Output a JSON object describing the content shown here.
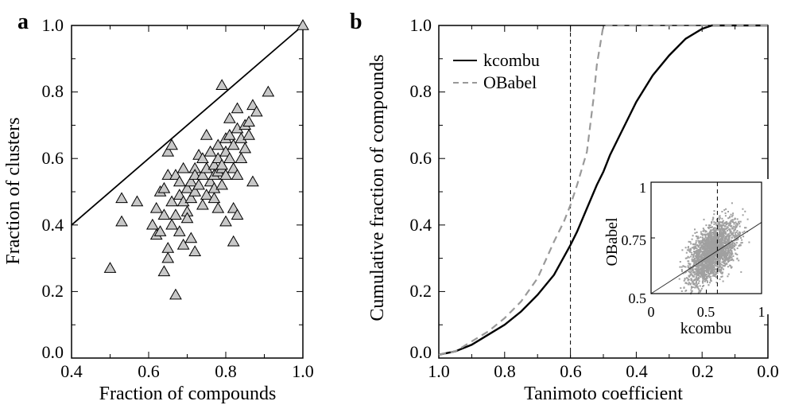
{
  "chart_data": [
    {
      "panel": "a",
      "type": "scatter",
      "xlabel": "Fraction of compounds",
      "ylabel": "Fraction of  clusters",
      "xlim": [
        0.4,
        1.0
      ],
      "ylim": [
        0.0,
        1.0
      ],
      "xticks": [
        "0.4",
        "0.6",
        "0.8",
        "1.0"
      ],
      "yticks": [
        "0.0",
        "0.2",
        "0.4",
        "0.6",
        "0.8",
        "1.0"
      ],
      "reference_line": [
        [
          0.4,
          0.4
        ],
        [
          1.0,
          1.0
        ]
      ],
      "marker": "triangle",
      "marker_color": "#c8c8c8",
      "points": [
        [
          0.5,
          0.27
        ],
        [
          0.53,
          0.48
        ],
        [
          0.53,
          0.41
        ],
        [
          0.57,
          0.47
        ],
        [
          0.61,
          0.4
        ],
        [
          0.62,
          0.37
        ],
        [
          0.62,
          0.45
        ],
        [
          0.63,
          0.38
        ],
        [
          0.63,
          0.5
        ],
        [
          0.64,
          0.51
        ],
        [
          0.64,
          0.26
        ],
        [
          0.64,
          0.43
        ],
        [
          0.65,
          0.3
        ],
        [
          0.65,
          0.33
        ],
        [
          0.65,
          0.55
        ],
        [
          0.65,
          0.62
        ],
        [
          0.66,
          0.64
        ],
        [
          0.66,
          0.4
        ],
        [
          0.66,
          0.47
        ],
        [
          0.67,
          0.43
        ],
        [
          0.67,
          0.55
        ],
        [
          0.67,
          0.19
        ],
        [
          0.68,
          0.49
        ],
        [
          0.68,
          0.38
        ],
        [
          0.68,
          0.53
        ],
        [
          0.69,
          0.57
        ],
        [
          0.69,
          0.47
        ],
        [
          0.69,
          0.34
        ],
        [
          0.7,
          0.51
        ],
        [
          0.7,
          0.44
        ],
        [
          0.7,
          0.42
        ],
        [
          0.71,
          0.53
        ],
        [
          0.71,
          0.48
        ],
        [
          0.71,
          0.36
        ],
        [
          0.72,
          0.57
        ],
        [
          0.72,
          0.5
        ],
        [
          0.72,
          0.32
        ],
        [
          0.72,
          0.55
        ],
        [
          0.73,
          0.52
        ],
        [
          0.73,
          0.61
        ],
        [
          0.74,
          0.55
        ],
        [
          0.74,
          0.46
        ],
        [
          0.74,
          0.6
        ],
        [
          0.75,
          0.67
        ],
        [
          0.75,
          0.57
        ],
        [
          0.75,
          0.49
        ],
        [
          0.76,
          0.53
        ],
        [
          0.76,
          0.62
        ],
        [
          0.77,
          0.58
        ],
        [
          0.77,
          0.48
        ],
        [
          0.77,
          0.55
        ],
        [
          0.77,
          0.51
        ],
        [
          0.78,
          0.6
        ],
        [
          0.78,
          0.56
        ],
        [
          0.78,
          0.64
        ],
        [
          0.78,
          0.45
        ],
        [
          0.79,
          0.82
        ],
        [
          0.79,
          0.57
        ],
        [
          0.79,
          0.52
        ],
        [
          0.79,
          0.58
        ],
        [
          0.8,
          0.66
        ],
        [
          0.8,
          0.62
        ],
        [
          0.8,
          0.55
        ],
        [
          0.8,
          0.41
        ],
        [
          0.81,
          0.6
        ],
        [
          0.81,
          0.67
        ],
        [
          0.81,
          0.72
        ],
        [
          0.82,
          0.45
        ],
        [
          0.82,
          0.57
        ],
        [
          0.82,
          0.64
        ],
        [
          0.82,
          0.35
        ],
        [
          0.83,
          0.75
        ],
        [
          0.83,
          0.69
        ],
        [
          0.83,
          0.43
        ],
        [
          0.83,
          0.55
        ],
        [
          0.84,
          0.6
        ],
        [
          0.84,
          0.66
        ],
        [
          0.85,
          0.7
        ],
        [
          0.85,
          0.63
        ],
        [
          0.86,
          0.67
        ],
        [
          0.86,
          0.71
        ],
        [
          0.87,
          0.53
        ],
        [
          0.87,
          0.76
        ],
        [
          0.88,
          0.74
        ],
        [
          0.91,
          0.8
        ],
        [
          1.0,
          1.0
        ]
      ]
    },
    {
      "panel": "b",
      "type": "line",
      "xlabel": "Tanimoto coefficient",
      "ylabel": "Cumulative fraction of compounds",
      "xlim": [
        1.0,
        0.0
      ],
      "ylim": [
        0.0,
        1.0
      ],
      "xticks": [
        "1.0",
        "0.8",
        "0.6",
        "0.4",
        "0.2",
        "0.0"
      ],
      "yticks": [
        "0.0",
        "0.2",
        "0.4",
        "0.6",
        "0.8",
        "1.0"
      ],
      "vline": 0.6,
      "legend": {
        "position": "top-left"
      },
      "series": [
        {
          "name": "kcombu",
          "style": "solid",
          "color": "#000000",
          "x": [
            1.0,
            0.95,
            0.9,
            0.85,
            0.8,
            0.75,
            0.7,
            0.65,
            0.6,
            0.58,
            0.55,
            0.52,
            0.5,
            0.48,
            0.45,
            0.42,
            0.4,
            0.35,
            0.3,
            0.25,
            0.2,
            0.17,
            0.15,
            0.1,
            0.05,
            0.0
          ],
          "y": [
            0.01,
            0.02,
            0.04,
            0.07,
            0.1,
            0.14,
            0.19,
            0.25,
            0.34,
            0.38,
            0.45,
            0.52,
            0.56,
            0.61,
            0.67,
            0.73,
            0.77,
            0.85,
            0.91,
            0.96,
            0.99,
            1.0,
            1.0,
            1.0,
            1.0,
            1.0
          ]
        },
        {
          "name": "OBabel",
          "style": "dashed",
          "color": "#999999",
          "x": [
            1.0,
            0.95,
            0.9,
            0.85,
            0.8,
            0.75,
            0.7,
            0.65,
            0.62,
            0.6,
            0.58,
            0.55,
            0.53,
            0.52,
            0.5,
            0.45,
            0.4,
            0.2,
            0.0
          ],
          "y": [
            0.01,
            0.02,
            0.05,
            0.08,
            0.12,
            0.17,
            0.24,
            0.35,
            0.41,
            0.46,
            0.52,
            0.62,
            0.78,
            0.88,
            1.0,
            1.0,
            1.0,
            1.0,
            1.0
          ]
        }
      ],
      "inset": {
        "type": "scatter",
        "xlabel": "kcombu",
        "ylabel": "OBabel",
        "xlim": [
          0.0,
          1.0
        ],
        "ylim": [
          0.5,
          1.0
        ],
        "xticks": [
          "0",
          "0.5",
          "1"
        ],
        "yticks": [
          "0.5",
          "0.75",
          "1"
        ],
        "vline": 0.6,
        "fit_line": [
          [
            0.0,
            0.5
          ],
          [
            1.0,
            0.82
          ]
        ],
        "point_color": "#a0a0a0"
      }
    }
  ]
}
